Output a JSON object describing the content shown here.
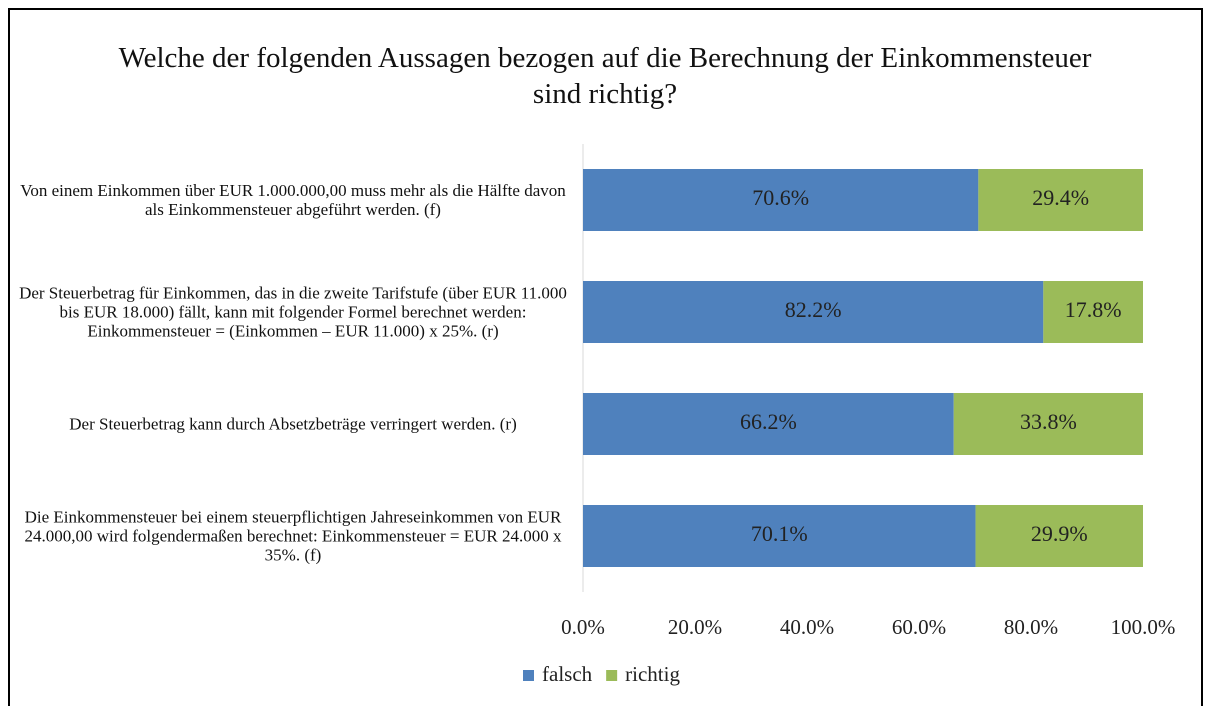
{
  "chart_data": {
    "type": "stacked_barh",
    "title": "Welche der folgenden Aussagen bezogen auf die Berechnung der Einkommensteuer sind richtig?",
    "categories": [
      "Von einem Einkommen über EUR 1.000.000,00 muss mehr als die Hälfte davon als Einkommensteuer abgeführt werden. (f)",
      "Der Steuerbetrag für Einkommen, das in die zweite Tarifstufe (über EUR 11.000 bis EUR 18.000) fällt, kann mit folgender Formel berechnet werden: Einkommensteuer = (Einkommen – EUR 11.000) x 25%. (r)",
      "Der Steuerbetrag kann durch Absetzbeträge verringert werden. (r)",
      "Die Einkommensteuer bei einem steuerpflichtigen Jahreseinkommen von EUR 24.000,00 wird folgendermaßen berechnet: Einkommensteuer = EUR 24.000 x 35%. (f)"
    ],
    "series": [
      {
        "name": "falsch",
        "color": "#4f81bd",
        "values": [
          70.6,
          82.2,
          66.2,
          70.1
        ],
        "value_labels": [
          "70.6%",
          "82.2%",
          "66.2%",
          "70.1%"
        ]
      },
      {
        "name": "richtig",
        "color": "#9bbb59",
        "values": [
          29.4,
          17.8,
          33.8,
          29.9
        ],
        "value_labels": [
          "29.4%",
          "17.8%",
          "33.8%",
          "29.9%"
        ]
      }
    ],
    "xlim": [
      0,
      100
    ],
    "xticks": [
      {
        "value": 0,
        "label": "0.0%"
      },
      {
        "value": 20,
        "label": "20.0%"
      },
      {
        "value": 40,
        "label": "40.0%"
      },
      {
        "value": 60,
        "label": "60.0%"
      },
      {
        "value": 80,
        "label": "80.0%"
      },
      {
        "value": 100,
        "label": "100.0%"
      }
    ],
    "legend": "bottom"
  }
}
